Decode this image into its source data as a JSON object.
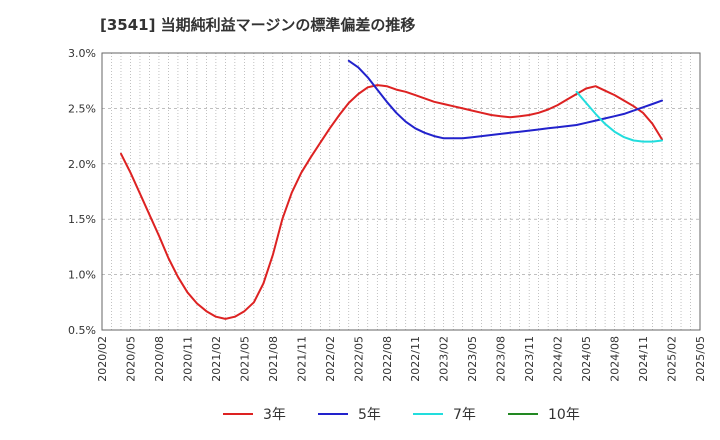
{
  "chart_data": {
    "type": "line",
    "title": "[3541]  当期純利益マージンの標準偏差の推移",
    "xlabel": "",
    "ylabel": "",
    "ylim": [
      0.5,
      3.0
    ],
    "xlim": [
      "2020/02",
      "2025/05"
    ],
    "y_ticks": [
      "3.0%",
      "2.5%",
      "2.0%",
      "1.5%",
      "1.0%",
      "0.5%"
    ],
    "x_ticks": [
      "2020/02",
      "2020/05",
      "2020/08",
      "2020/11",
      "2021/02",
      "2021/05",
      "2021/08",
      "2021/11",
      "2022/02",
      "2022/05",
      "2022/08",
      "2022/11",
      "2023/02",
      "2023/05",
      "2023/08",
      "2023/11",
      "2024/02",
      "2024/05",
      "2024/08",
      "2024/11",
      "2025/02",
      "2025/05"
    ],
    "grid": true,
    "legend_position": "bottom",
    "series": [
      {
        "name": "3年",
        "color": "#dd2222",
        "points": [
          [
            "2020/04",
            2.09
          ],
          [
            "2020/05",
            1.92
          ],
          [
            "2020/06",
            1.73
          ],
          [
            "2020/07",
            1.54
          ],
          [
            "2020/08",
            1.35
          ],
          [
            "2020/09",
            1.15
          ],
          [
            "2020/10",
            0.98
          ],
          [
            "2020/11",
            0.84
          ],
          [
            "2020/12",
            0.74
          ],
          [
            "2021/01",
            0.67
          ],
          [
            "2021/02",
            0.62
          ],
          [
            "2021/03",
            0.6
          ],
          [
            "2021/04",
            0.62
          ],
          [
            "2021/05",
            0.67
          ],
          [
            "2021/06",
            0.75
          ],
          [
            "2021/07",
            0.92
          ],
          [
            "2021/08",
            1.18
          ],
          [
            "2021/09",
            1.5
          ],
          [
            "2021/10",
            1.74
          ],
          [
            "2021/11",
            1.92
          ],
          [
            "2021/12",
            2.06
          ],
          [
            "2022/01",
            2.19
          ],
          [
            "2022/02",
            2.32
          ],
          [
            "2022/03",
            2.44
          ],
          [
            "2022/04",
            2.55
          ],
          [
            "2022/05",
            2.63
          ],
          [
            "2022/06",
            2.69
          ],
          [
            "2022/07",
            2.71
          ],
          [
            "2022/08",
            2.7
          ],
          [
            "2022/09",
            2.67
          ],
          [
            "2022/10",
            2.65
          ],
          [
            "2022/11",
            2.62
          ],
          [
            "2022/12",
            2.59
          ],
          [
            "2023/01",
            2.56
          ],
          [
            "2023/02",
            2.54
          ],
          [
            "2023/03",
            2.52
          ],
          [
            "2023/04",
            2.5
          ],
          [
            "2023/05",
            2.48
          ],
          [
            "2023/06",
            2.46
          ],
          [
            "2023/07",
            2.44
          ],
          [
            "2023/08",
            2.43
          ],
          [
            "2023/09",
            2.42
          ],
          [
            "2023/10",
            2.43
          ],
          [
            "2023/11",
            2.44
          ],
          [
            "2023/12",
            2.46
          ],
          [
            "2024/01",
            2.49
          ],
          [
            "2024/02",
            2.53
          ],
          [
            "2024/03",
            2.58
          ],
          [
            "2024/04",
            2.63
          ],
          [
            "2024/05",
            2.68
          ],
          [
            "2024/06",
            2.7
          ],
          [
            "2024/07",
            2.66
          ],
          [
            "2024/08",
            2.62
          ],
          [
            "2024/09",
            2.57
          ],
          [
            "2024/10",
            2.52
          ],
          [
            "2024/11",
            2.46
          ],
          [
            "2024/12",
            2.36
          ],
          [
            "2025/01",
            2.22
          ]
        ]
      },
      {
        "name": "5年",
        "color": "#2222cc",
        "points": [
          [
            "2022/04",
            2.93
          ],
          [
            "2022/05",
            2.87
          ],
          [
            "2022/06",
            2.78
          ],
          [
            "2022/07",
            2.67
          ],
          [
            "2022/08",
            2.56
          ],
          [
            "2022/09",
            2.46
          ],
          [
            "2022/10",
            2.38
          ],
          [
            "2022/11",
            2.32
          ],
          [
            "2022/12",
            2.28
          ],
          [
            "2023/01",
            2.25
          ],
          [
            "2023/02",
            2.23
          ],
          [
            "2023/03",
            2.23
          ],
          [
            "2023/04",
            2.23
          ],
          [
            "2023/05",
            2.24
          ],
          [
            "2023/06",
            2.25
          ],
          [
            "2023/07",
            2.26
          ],
          [
            "2023/08",
            2.27
          ],
          [
            "2023/09",
            2.28
          ],
          [
            "2023/10",
            2.29
          ],
          [
            "2023/11",
            2.3
          ],
          [
            "2023/12",
            2.31
          ],
          [
            "2024/01",
            2.32
          ],
          [
            "2024/02",
            2.33
          ],
          [
            "2024/03",
            2.34
          ],
          [
            "2024/04",
            2.35
          ],
          [
            "2024/05",
            2.37
          ],
          [
            "2024/06",
            2.39
          ],
          [
            "2024/07",
            2.41
          ],
          [
            "2024/08",
            2.43
          ],
          [
            "2024/09",
            2.45
          ],
          [
            "2024/10",
            2.48
          ],
          [
            "2024/11",
            2.51
          ],
          [
            "2024/12",
            2.54
          ],
          [
            "2025/01",
            2.57
          ]
        ]
      },
      {
        "name": "7年",
        "color": "#22dddd",
        "points": [
          [
            "2024/04",
            2.65
          ],
          [
            "2024/05",
            2.55
          ],
          [
            "2024/06",
            2.45
          ],
          [
            "2024/07",
            2.36
          ],
          [
            "2024/08",
            2.29
          ],
          [
            "2024/09",
            2.24
          ],
          [
            "2024/10",
            2.21
          ],
          [
            "2024/11",
            2.2
          ],
          [
            "2024/12",
            2.2
          ],
          [
            "2025/01",
            2.21
          ]
        ]
      },
      {
        "name": "10年",
        "color": "#228822",
        "points": []
      }
    ]
  }
}
